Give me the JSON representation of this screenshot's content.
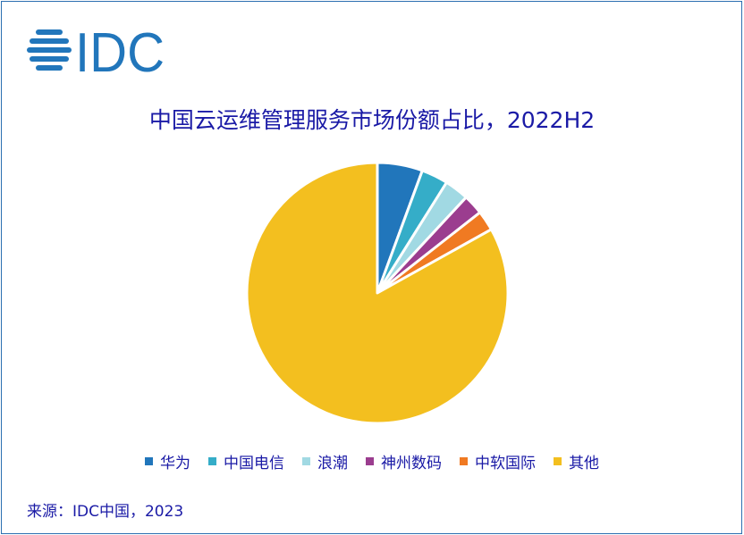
{
  "logo_text": "IDC",
  "chart_data": {
    "type": "pie",
    "title": "中国云运维管理服务市场份额占比，2022H2",
    "categories": [
      "华为",
      "中国电信",
      "浪潮",
      "神州数码",
      "中软国际",
      "其他"
    ],
    "values": [
      5.6,
      3.3,
      3.0,
      2.5,
      2.5,
      83.1
    ],
    "colors": [
      "#2176BB",
      "#35ADC8",
      "#A1D9E3",
      "#9B3D8F",
      "#F07A22",
      "#F3BF1F"
    ],
    "start_angle": "12 o'clock, clockwise",
    "legend_position": "bottom"
  },
  "source": "来源：IDC中国，2023"
}
